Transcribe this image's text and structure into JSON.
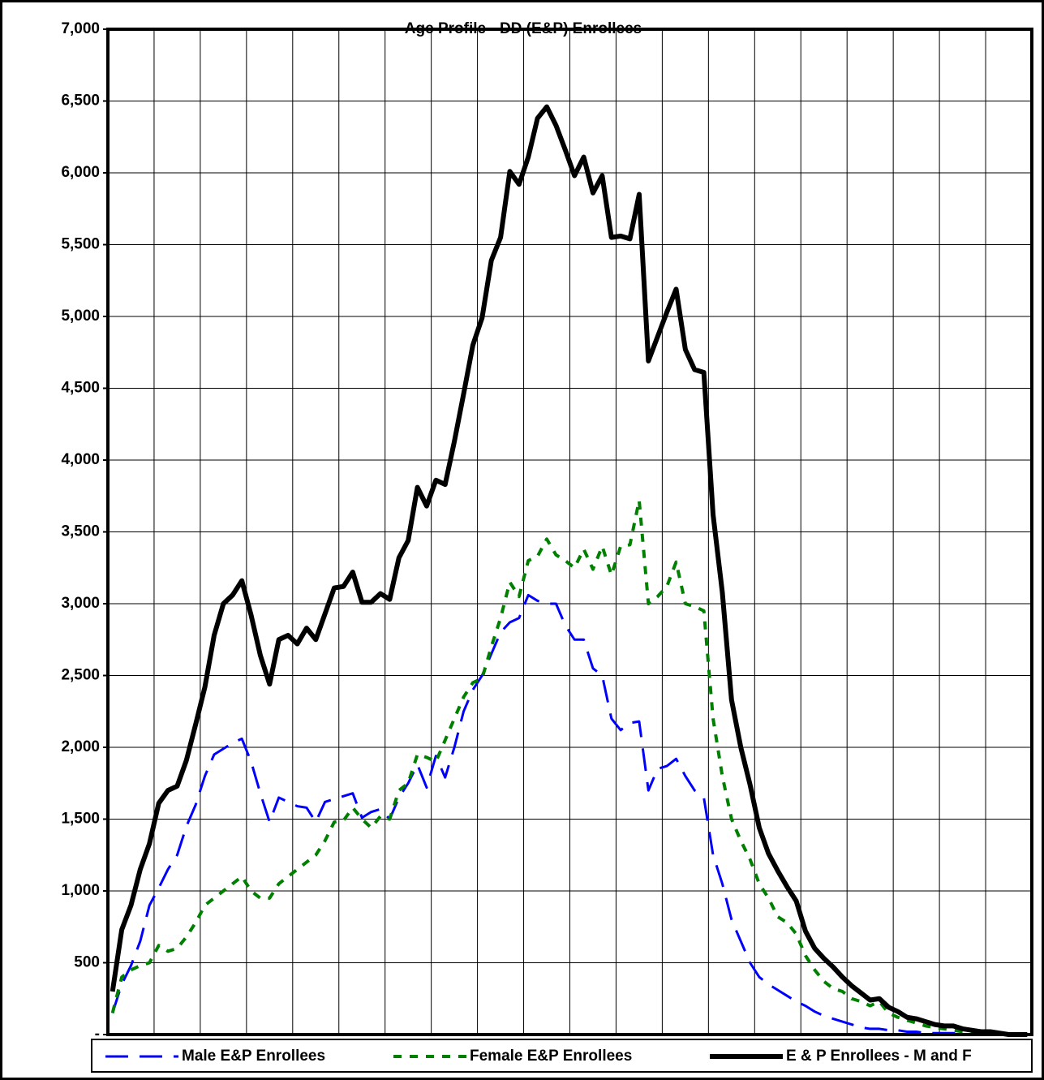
{
  "chart_data": {
    "type": "line",
    "title": "Age Profile - DD (E&P) Enrollees",
    "categories": [
      null,
      null,
      null,
      null,
      null,
      null,
      null,
      null,
      null,
      null,
      null,
      null,
      null,
      null,
      null,
      null,
      null,
      null,
      null,
      null,
      null,
      null,
      null,
      null,
      null,
      null,
      null,
      null,
      null,
      null,
      null,
      null,
      null,
      null,
      null,
      null,
      null,
      null,
      null,
      null,
      null,
      null,
      null,
      null,
      null,
      null,
      null,
      null,
      null,
      null,
      null,
      null,
      null,
      null,
      null,
      null,
      null,
      null,
      null,
      null,
      null,
      null,
      null,
      null,
      null,
      null,
      null,
      null,
      null,
      null,
      null,
      null,
      null,
      null,
      null,
      null,
      null,
      null,
      null,
      null,
      null,
      null,
      null,
      null,
      null,
      null,
      null,
      null,
      null,
      null,
      null,
      null,
      null,
      null,
      null,
      null,
      null,
      null,
      null,
      null
    ],
    "series": [
      {
        "name": "Male E&P Enrollees",
        "color": "#0000ff",
        "line_style": "dashed",
        "values": [
          150,
          350,
          480,
          650,
          900,
          1020,
          1150,
          1250,
          1450,
          1600,
          1800,
          1950,
          1990,
          2030,
          2060,
          1900,
          1680,
          1480,
          1650,
          1620,
          1590,
          1580,
          1480,
          1620,
          1640,
          1660,
          1680,
          1510,
          1550,
          1570,
          1500,
          1650,
          1750,
          1880,
          1720,
          1940,
          1790,
          2000,
          2250,
          2400,
          2500,
          2650,
          2800,
          2870,
          2900,
          3060,
          3020,
          3000,
          3000,
          2850,
          2750,
          2750,
          2550,
          2500,
          2200,
          2120,
          2170,
          2180,
          1700,
          1850,
          1870,
          1920,
          1800,
          1700,
          1650,
          1250,
          1050,
          800,
          650,
          500,
          400,
          350,
          310,
          270,
          230,
          200,
          160,
          130,
          110,
          90,
          70,
          50,
          40,
          40,
          30,
          30,
          20,
          20,
          10,
          10,
          10,
          10,
          0,
          0,
          0,
          0,
          0,
          0,
          0,
          0
        ]
      },
      {
        "name": "Female E&P Enrollees",
        "color": "#008000",
        "line_style": "dotted",
        "values": [
          150,
          400,
          450,
          480,
          500,
          620,
          580,
          600,
          680,
          780,
          900,
          950,
          1000,
          1050,
          1100,
          1000,
          950,
          950,
          1050,
          1100,
          1150,
          1200,
          1250,
          1350,
          1480,
          1490,
          1580,
          1500,
          1440,
          1520,
          1500,
          1700,
          1750,
          1950,
          1930,
          1900,
          2050,
          2200,
          2350,
          2450,
          2480,
          2700,
          2900,
          3150,
          3050,
          3300,
          3330,
          3450,
          3340,
          3300,
          3250,
          3380,
          3240,
          3400,
          3200,
          3400,
          3410,
          3720,
          3000,
          3050,
          3120,
          3290,
          3000,
          2980,
          2950,
          2200,
          1800,
          1500,
          1350,
          1220,
          1050,
          950,
          820,
          780,
          700,
          550,
          450,
          370,
          320,
          300,
          250,
          230,
          200,
          230,
          150,
          120,
          100,
          80,
          60,
          50,
          40,
          30,
          20,
          10,
          10,
          5,
          0,
          0,
          0,
          0
        ]
      },
      {
        "name": "E & P Enrollees - M and F",
        "color": "#000000",
        "line_style": "solid",
        "values": [
          300,
          730,
          900,
          1150,
          1330,
          1610,
          1700,
          1730,
          1910,
          2160,
          2420,
          2780,
          3000,
          3060,
          3160,
          2920,
          2640,
          2440,
          2750,
          2780,
          2720,
          2830,
          2750,
          2930,
          3110,
          3120,
          3220,
          3010,
          3010,
          3070,
          3030,
          3320,
          3440,
          3810,
          3680,
          3860,
          3830,
          4130,
          4460,
          4800,
          4990,
          5390,
          5550,
          6010,
          5920,
          6110,
          6380,
          6460,
          6330,
          6160,
          5980,
          6110,
          5860,
          5980,
          5550,
          5560,
          5540,
          5850,
          4690,
          4860,
          5030,
          5190,
          4770,
          4630,
          4610,
          3620,
          3080,
          2330,
          2000,
          1740,
          1440,
          1260,
          1140,
          1030,
          930,
          720,
          600,
          530,
          470,
          400,
          340,
          290,
          240,
          250,
          190,
          160,
          120,
          110,
          90,
          70,
          60,
          60,
          40,
          30,
          20,
          20,
          10,
          0,
          0,
          0
        ]
      }
    ],
    "ylim": [
      0,
      7000
    ],
    "yticks": [
      {
        "value": 0,
        "label": "-"
      },
      500,
      {
        "value": 1000,
        "label": "1,000"
      },
      {
        "value": 1500,
        "label": "1,500"
      },
      {
        "value": 2000,
        "label": "2,000"
      },
      {
        "value": 2500,
        "label": "2,500"
      },
      {
        "value": 3000,
        "label": "3,000"
      },
      {
        "value": 3500,
        "label": "3,500"
      },
      {
        "value": 4000,
        "label": "4,000"
      },
      {
        "value": 4500,
        "label": "4,500"
      },
      {
        "value": 5000,
        "label": "5,000"
      },
      {
        "value": 5500,
        "label": "5,500"
      },
      {
        "value": 6000,
        "label": "6,000"
      },
      {
        "value": 6500,
        "label": "6,500"
      },
      {
        "value": 7000,
        "label": "7,000"
      }
    ],
    "grid": true,
    "legend": "bottom"
  }
}
